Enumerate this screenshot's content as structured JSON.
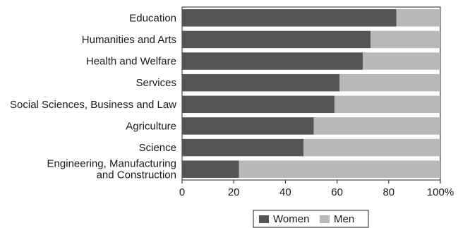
{
  "chart_data": {
    "type": "bar",
    "orientation": "horizontal",
    "stacked": true,
    "normalized_percent": true,
    "categories": [
      [
        "Education"
      ],
      [
        "Humanities and Arts"
      ],
      [
        "Health and Welfare"
      ],
      [
        "Services"
      ],
      [
        "Social Sciences, Business and Law"
      ],
      [
        "Agriculture"
      ],
      [
        "Science"
      ],
      [
        "Engineering, Manufacturing",
        "and Construction"
      ]
    ],
    "series": [
      {
        "name": "Women",
        "color": "#555555",
        "values": [
          83,
          73,
          70,
          61,
          59,
          51,
          47,
          22
        ]
      },
      {
        "name": "Men",
        "color": "#b8b8b8",
        "values": [
          17,
          27,
          30,
          39,
          41,
          49,
          53,
          78
        ]
      }
    ],
    "x_ticks": [
      "0",
      "20",
      "40",
      "60",
      "80",
      "100%"
    ],
    "x_tick_values": [
      0,
      20,
      40,
      60,
      80,
      100
    ],
    "xlim": [
      0,
      100
    ],
    "title": "",
    "xlabel": "",
    "ylabel": "",
    "grid": false,
    "legend": {
      "position": "bottom-center",
      "entries": [
        "Women",
        "Men"
      ]
    }
  }
}
